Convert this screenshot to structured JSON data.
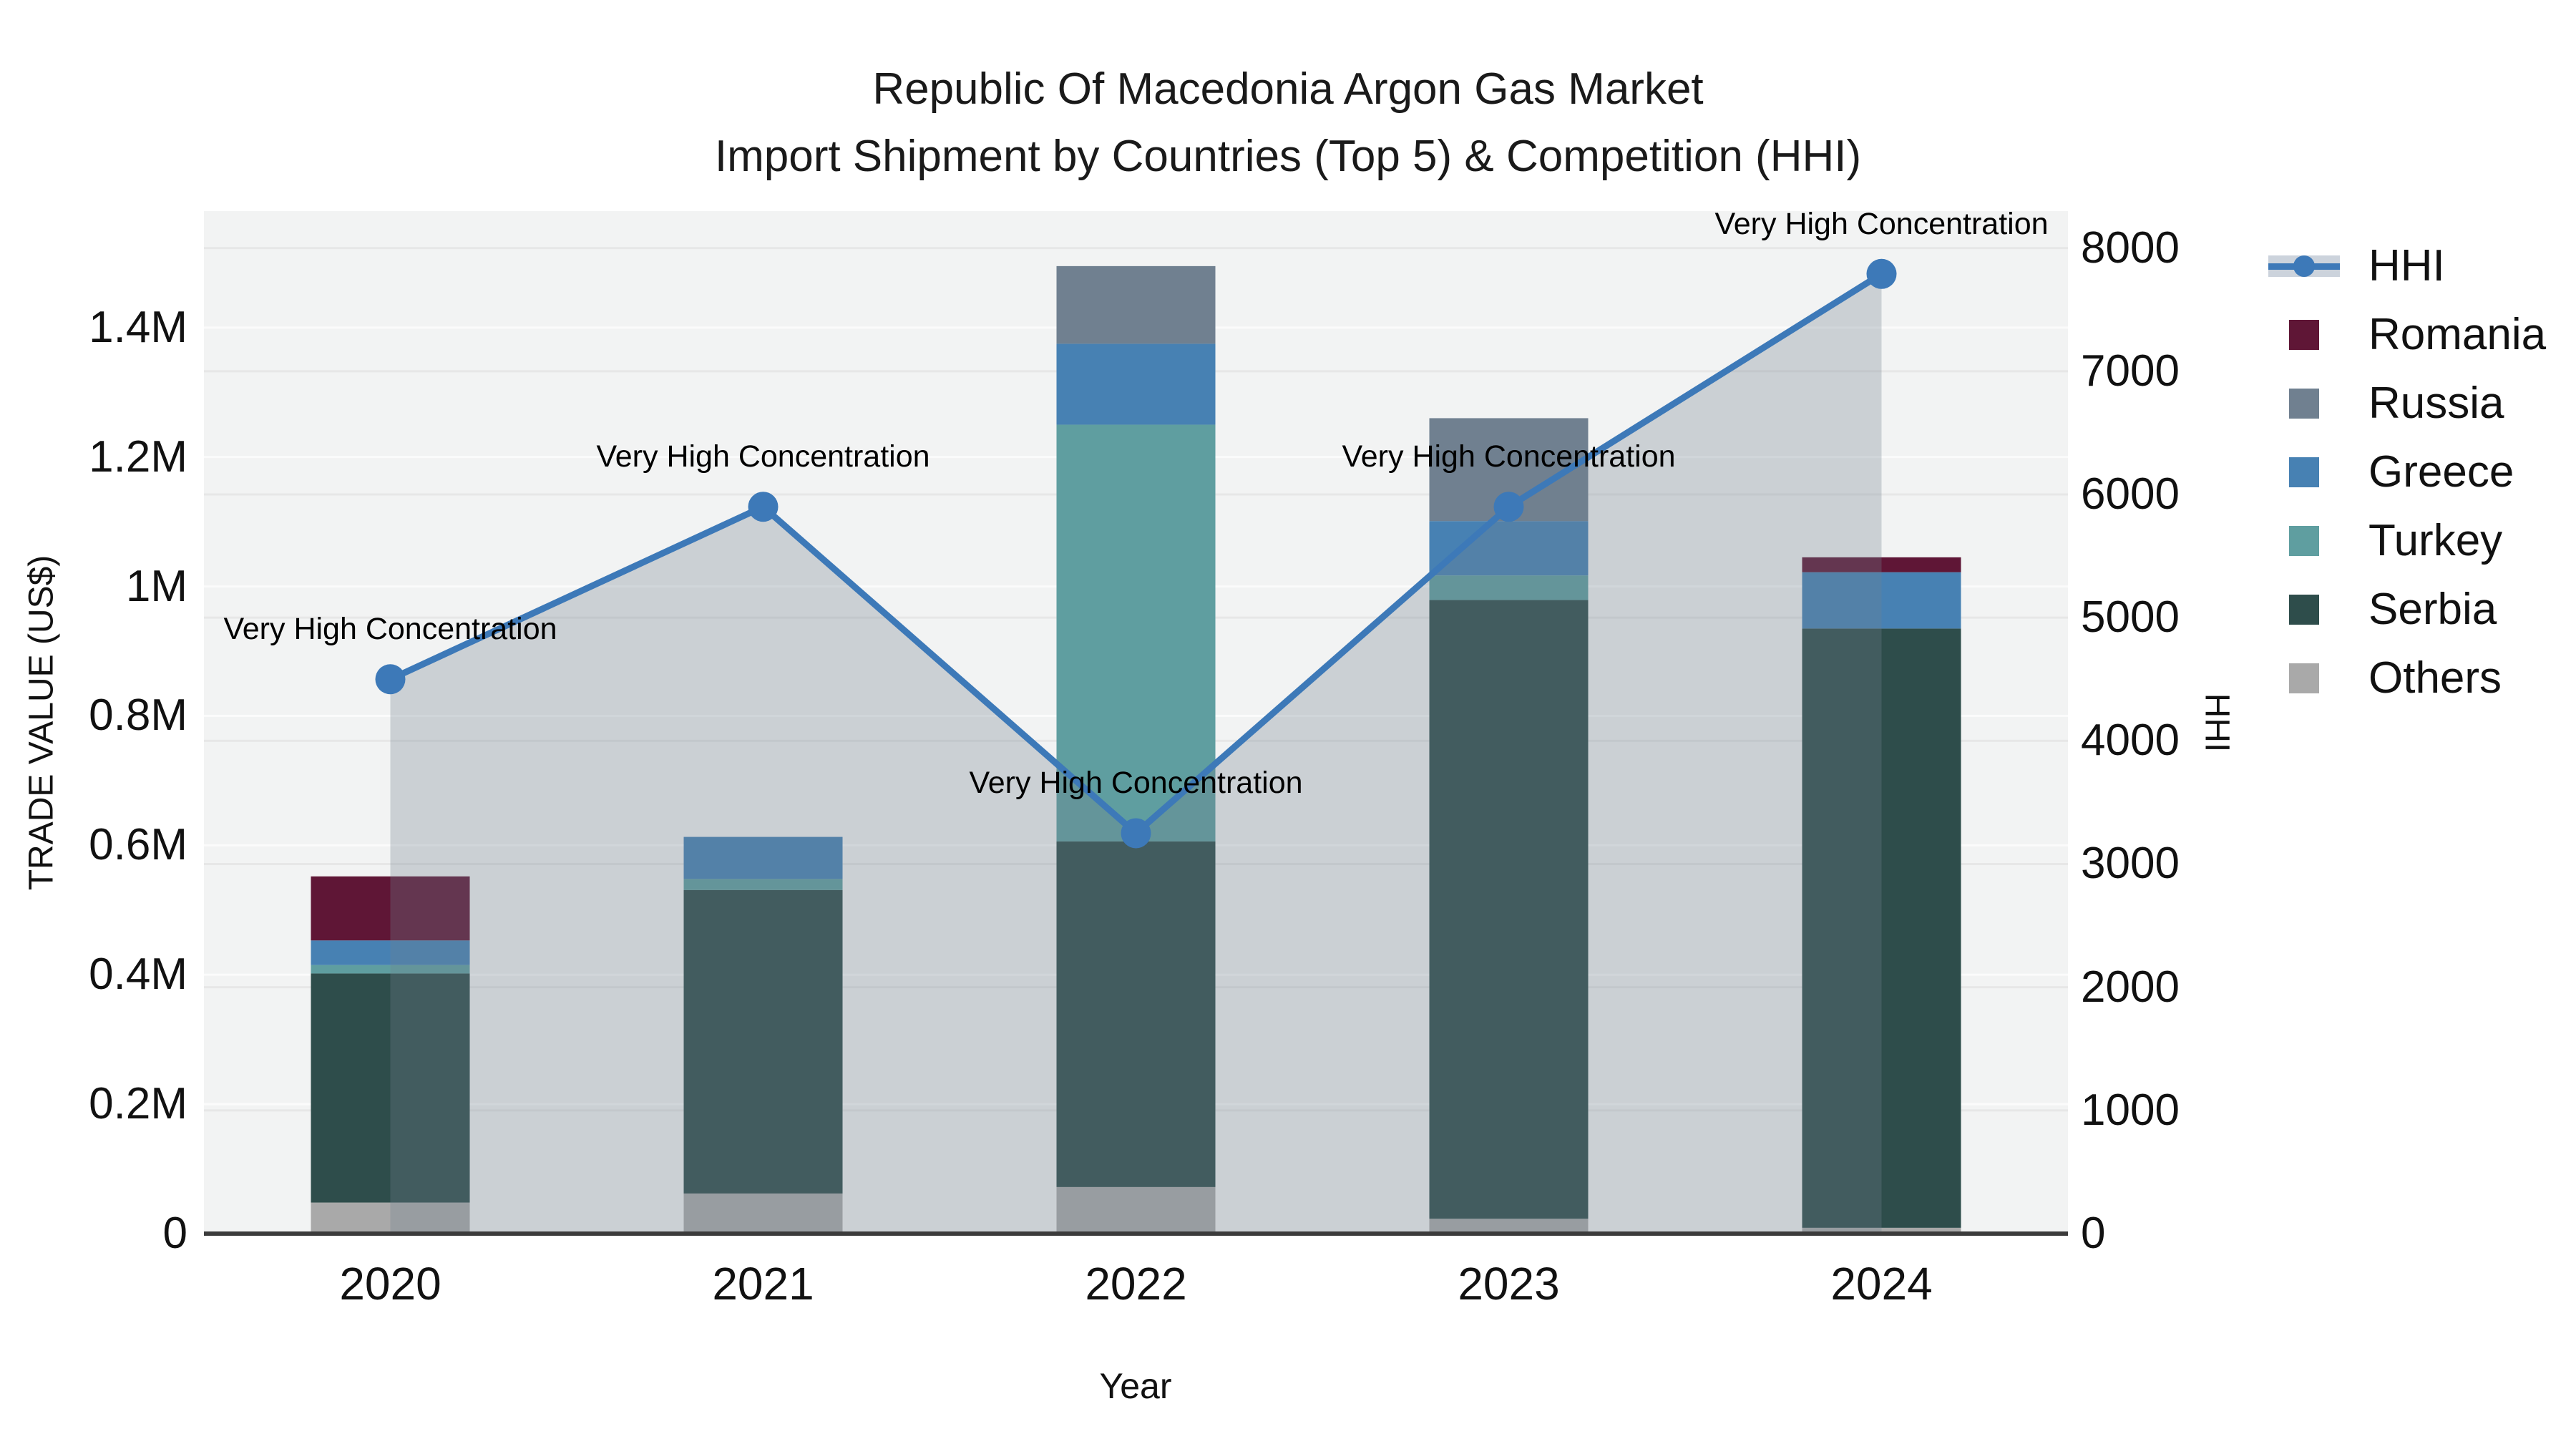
{
  "title": {
    "line1": "Republic Of Macedonia Argon Gas Market",
    "line2": "Import Shipment by Countries (Top 5) & Competition (HHI)"
  },
  "axes": {
    "left": {
      "title": "TRADE VALUE (US$)",
      "range": [
        0,
        1580000
      ],
      "ticks": [
        {
          "label": "0",
          "value": 0
        },
        {
          "label": "0.2M",
          "value": 200000
        },
        {
          "label": "0.4M",
          "value": 400000
        },
        {
          "label": "0.6M",
          "value": 600000
        },
        {
          "label": "0.8M",
          "value": 800000
        },
        {
          "label": "1M",
          "value": 1000000
        },
        {
          "label": "1.2M",
          "value": 1200000
        },
        {
          "label": "1.4M",
          "value": 1400000
        }
      ]
    },
    "right": {
      "title": "HHI",
      "range": [
        0,
        8300
      ],
      "ticks": [
        {
          "label": "0",
          "value": 0
        },
        {
          "label": "1000",
          "value": 1000
        },
        {
          "label": "2000",
          "value": 2000
        },
        {
          "label": "3000",
          "value": 3000
        },
        {
          "label": "4000",
          "value": 4000
        },
        {
          "label": "5000",
          "value": 5000
        },
        {
          "label": "6000",
          "value": 6000
        },
        {
          "label": "7000",
          "value": 7000
        },
        {
          "label": "8000",
          "value": 8000
        }
      ]
    },
    "x": {
      "title": "Year",
      "categories": [
        "2020",
        "2021",
        "2022",
        "2023",
        "2024"
      ]
    }
  },
  "chart_data": {
    "type": "bar+line",
    "title": "Republic Of Macedonia Argon Gas Market — Import Shipment by Countries (Top 5) & Competition (HHI)",
    "categories": [
      "2020",
      "2021",
      "2022",
      "2023",
      "2024"
    ],
    "bar_value_unit": "US$",
    "stack_order_note": "series listed bottom-to-top of stack",
    "series": [
      {
        "name": "Others",
        "color": "#a9a9a9",
        "values": [
          48000,
          62000,
          72000,
          23000,
          9000
        ]
      },
      {
        "name": "Serbia",
        "color": "#2e4d4b",
        "values": [
          354000,
          469000,
          534000,
          956000,
          926000
        ]
      },
      {
        "name": "Turkey",
        "color": "#5f9ea0",
        "values": [
          13000,
          17000,
          644000,
          38000,
          0
        ]
      },
      {
        "name": "Greece",
        "color": "#4781b3",
        "values": [
          38000,
          65000,
          125000,
          84000,
          87000
        ]
      },
      {
        "name": "Russia",
        "color": "#708090",
        "values": [
          0,
          0,
          120000,
          159000,
          0
        ]
      },
      {
        "name": "Romania",
        "color": "#5f1636",
        "values": [
          99000,
          0,
          0,
          0,
          23000
        ]
      }
    ],
    "line": {
      "name": "HHI",
      "color": "#3d79b8",
      "area_fill": "rgba(112,128,144,0.30)",
      "values": [
        4500,
        5900,
        3250,
        5900,
        7790
      ]
    },
    "ylim_left": [
      0,
      1580000
    ],
    "ylim_right": [
      0,
      8300
    ],
    "grid": true,
    "legend_position": "right"
  },
  "annotations": [
    {
      "year": "2020",
      "text": "Very High Concentration"
    },
    {
      "year": "2021",
      "text": "Very High Concentration"
    },
    {
      "year": "2022",
      "text": "Very High Concentration"
    },
    {
      "year": "2023",
      "text": "Very High Concentration"
    },
    {
      "year": "2024",
      "text": "Very High Concentration"
    }
  ],
  "legend": {
    "items": [
      {
        "label": "HHI",
        "type": "line"
      },
      {
        "label": "Romania",
        "type": "swatch",
        "color": "#5f1636"
      },
      {
        "label": "Russia",
        "type": "swatch",
        "color": "#708090"
      },
      {
        "label": "Greece",
        "type": "swatch",
        "color": "#4781b3"
      },
      {
        "label": "Turkey",
        "type": "swatch",
        "color": "#5f9ea0"
      },
      {
        "label": "Serbia",
        "type": "swatch",
        "color": "#2e4d4b"
      },
      {
        "label": "Others",
        "type": "swatch",
        "color": "#a9a9a9"
      }
    ]
  },
  "colors": {
    "plot_background": "#f2f3f3",
    "gridline": "#e7e7e7",
    "axis_line": "#3b3b3b",
    "hhi_line": "#3d79b8"
  }
}
